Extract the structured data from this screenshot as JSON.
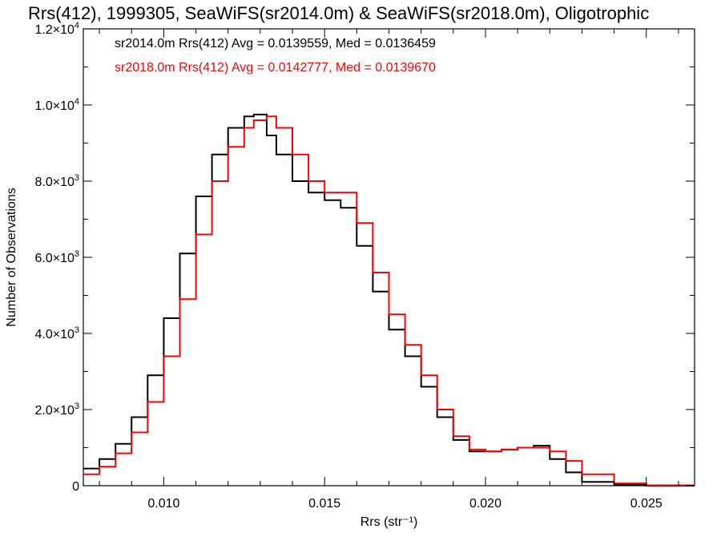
{
  "chart_data": {
    "type": "line",
    "title": "Rrs(412), 1999305, SeaWiFS(sr2014.0m) & SeaWiFS(sr2018.0m), Oligotrophic",
    "xlabel": "Rrs (str⁻¹)",
    "ylabel": "Number of Observations",
    "xlim": [
      0.0075,
      0.0265
    ],
    "ylim": [
      0,
      12000
    ],
    "x_ticks": [
      {
        "value": 0.01,
        "label": "0.010"
      },
      {
        "value": 0.015,
        "label": "0.015"
      },
      {
        "value": 0.02,
        "label": "0.020"
      },
      {
        "value": 0.025,
        "label": "0.025"
      }
    ],
    "y_ticks": [
      {
        "value": 0,
        "base": "0",
        "exp": ""
      },
      {
        "value": 2000,
        "base": "2.0×10",
        "exp": "3"
      },
      {
        "value": 4000,
        "base": "4.0×10",
        "exp": "3"
      },
      {
        "value": 6000,
        "base": "6.0×10",
        "exp": "3"
      },
      {
        "value": 8000,
        "base": "8.0×10",
        "exp": "3"
      },
      {
        "value": 10000,
        "base": "1.0×10",
        "exp": "4"
      },
      {
        "value": 12000,
        "base": "1.2×10",
        "exp": "4"
      }
    ],
    "annotations": [
      {
        "text": "sr2014.0m Rrs(412) Avg = 0.0139559, Med = 0.0136459",
        "color": "#000000"
      },
      {
        "text": "sr2018.0m Rrs(412) Avg = 0.0142777, Med = 0.0139670",
        "color": "#ff0000"
      }
    ],
    "grid": false,
    "step": true,
    "series": [
      {
        "color": "#000000",
        "x": [
          0.0075,
          0.008,
          0.0085,
          0.009,
          0.0095,
          0.01,
          0.0105,
          0.011,
          0.0115,
          0.012,
          0.0125,
          0.0128,
          0.0132,
          0.0135,
          0.014,
          0.0145,
          0.015,
          0.0155,
          0.016,
          0.0165,
          0.017,
          0.0175,
          0.018,
          0.0185,
          0.019,
          0.0195,
          0.02,
          0.0205,
          0.021,
          0.0215,
          0.022,
          0.0225,
          0.023,
          0.024,
          0.025,
          0.0265
        ],
        "y": [
          450,
          700,
          1100,
          1800,
          2900,
          4400,
          6100,
          7600,
          8700,
          9400,
          9700,
          9750,
          9200,
          8700,
          8000,
          7700,
          7500,
          7300,
          6300,
          5100,
          4100,
          3400,
          2600,
          1800,
          1200,
          900,
          900,
          950,
          1000,
          1050,
          700,
          350,
          100,
          20,
          0,
          0
        ]
      },
      {
        "color": "#ff0000",
        "x": [
          0.0075,
          0.008,
          0.0085,
          0.009,
          0.0095,
          0.01,
          0.0105,
          0.011,
          0.0115,
          0.012,
          0.0125,
          0.0128,
          0.0132,
          0.0135,
          0.014,
          0.0145,
          0.015,
          0.0155,
          0.016,
          0.0165,
          0.017,
          0.0175,
          0.018,
          0.0185,
          0.019,
          0.0195,
          0.02,
          0.0205,
          0.021,
          0.0215,
          0.022,
          0.0225,
          0.023,
          0.024,
          0.025,
          0.0265
        ],
        "y": [
          300,
          500,
          850,
          1400,
          2200,
          3400,
          4900,
          6600,
          8000,
          8900,
          9400,
          9600,
          9700,
          9400,
          8700,
          8000,
          7700,
          7700,
          6900,
          5600,
          4500,
          3700,
          2900,
          2000,
          1300,
          950,
          900,
          950,
          1000,
          1000,
          900,
          650,
          300,
          60,
          10,
          0
        ]
      }
    ]
  }
}
